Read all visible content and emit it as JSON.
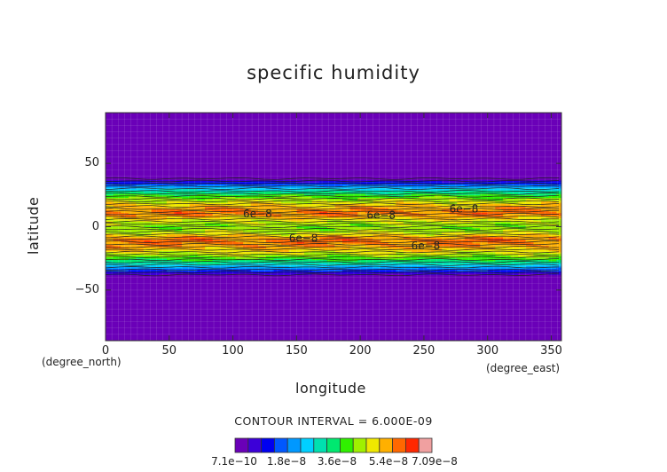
{
  "chart_data": {
    "type": "heatmap",
    "title": "specific humidity",
    "xlabel": "longitude",
    "ylabel": "latitude",
    "x_units": "(degree_east)",
    "y_units": "(degree_north)",
    "xlim": [
      0,
      358
    ],
    "ylim": [
      -90,
      90
    ],
    "x_ticks": [
      "0",
      "50",
      "100",
      "150",
      "200",
      "250",
      "300",
      "350"
    ],
    "x_tick_values": [
      0,
      50,
      100,
      150,
      200,
      250,
      300,
      350
    ],
    "y_ticks": [
      "50",
      "0",
      "−50"
    ],
    "y_tick_values": [
      50,
      0,
      -50
    ],
    "contour_interval_label": "CONTOUR INTERVAL = 6.000E-09",
    "colorbar": {
      "tick_labels": [
        "7.1e−10",
        "1.8e−8",
        "3.6e−8",
        "5.4e−8",
        "7.09e−8"
      ],
      "tick_values": [
        7.1e-10,
        1.8e-08,
        3.6e-08,
        5.4e-08,
        7.09e-08
      ],
      "colors": [
        "#6a00b8",
        "#3c00d8",
        "#0000f0",
        "#0058ff",
        "#0098ff",
        "#00d0ff",
        "#00e0b0",
        "#00e870",
        "#30f000",
        "#a0f000",
        "#f0e800",
        "#ffb000",
        "#ff6800",
        "#ff2800",
        "#f0a0a0"
      ]
    },
    "zonal_mean_profile": {
      "lat": [
        -90,
        -40,
        -38,
        -36,
        -34,
        -32,
        -30,
        -28,
        -26,
        -24,
        -22,
        -20,
        -18,
        -16,
        -14,
        -12,
        -10,
        -8,
        -6,
        -4,
        -2,
        0,
        2,
        4,
        6,
        8,
        10,
        12,
        14,
        16,
        18,
        20,
        22,
        24,
        26,
        28,
        30,
        32,
        34,
        36,
        38,
        40,
        90
      ],
      "value": [
        7.1e-10,
        7.1e-10,
        4e-09,
        1e-08,
        1.6e-08,
        2.2e-08,
        2.8e-08,
        3.3e-08,
        3.8e-08,
        4.2e-08,
        4.6e-08,
        4.9e-08,
        5.2e-08,
        5.5e-08,
        5.7e-08,
        5.8e-08,
        5.9e-08,
        5.5e-08,
        5e-08,
        4.7e-08,
        4.5e-08,
        4.4e-08,
        4.5e-08,
        4.7e-08,
        5e-08,
        5.4e-08,
        5.8e-08,
        5.8e-08,
        5.6e-08,
        5.4e-08,
        5.1e-08,
        4.8e-08,
        4.5e-08,
        4.1e-08,
        3.7e-08,
        3.2e-08,
        2.7e-08,
        2.1e-08,
        1.5e-08,
        9e-09,
        3.5e-09,
        7.1e-10,
        7.1e-10
      ]
    },
    "contour_labels": [
      {
        "text": "6e−8",
        "lon": 108,
        "lat": 10
      },
      {
        "text": "6e−8",
        "lon": 205,
        "lat": 9
      },
      {
        "text": "6e−8",
        "lon": 270,
        "lat": 14
      },
      {
        "text": "6e−8",
        "lon": 144,
        "lat": -9
      },
      {
        "text": "6e−8",
        "lon": 240,
        "lat": -15
      }
    ]
  }
}
